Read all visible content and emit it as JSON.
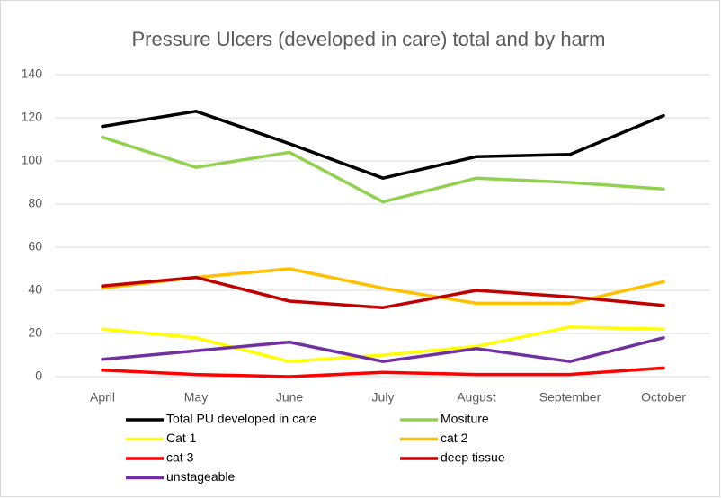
{
  "chart_data": {
    "type": "line",
    "title": "Pressure Ulcers (developed in care) total and by harm",
    "categories": [
      "April",
      "May",
      "June",
      "July",
      "August",
      "September",
      "October"
    ],
    "series": [
      {
        "name": "Total PU developed in care",
        "color": "#000000",
        "values": [
          116,
          123,
          108,
          92,
          102,
          103,
          121
        ]
      },
      {
        "name": "Mositure",
        "color": "#92d050",
        "values": [
          111,
          97,
          104,
          81,
          92,
          90,
          87
        ]
      },
      {
        "name": "Cat 1",
        "color": "#ffff00",
        "values": [
          22,
          18,
          7,
          10,
          14,
          23,
          22
        ]
      },
      {
        "name": "cat 2",
        "color": "#ffc000",
        "values": [
          41,
          46,
          50,
          41,
          34,
          34,
          44
        ]
      },
      {
        "name": "cat 3",
        "color": "#ff0000",
        "values": [
          3,
          1,
          0,
          2,
          1,
          1,
          4
        ]
      },
      {
        "name": "deep tissue",
        "color": "#c00000",
        "values": [
          42,
          46,
          35,
          32,
          40,
          37,
          33
        ]
      },
      {
        "name": "unstageable",
        "color": "#7030a0",
        "values": [
          8,
          12,
          16,
          7,
          13,
          7,
          18
        ]
      }
    ],
    "ylim": [
      0,
      140
    ],
    "yticks": [
      0,
      20,
      40,
      60,
      80,
      100,
      120,
      140
    ],
    "grid": true,
    "legend": "bottom"
  }
}
